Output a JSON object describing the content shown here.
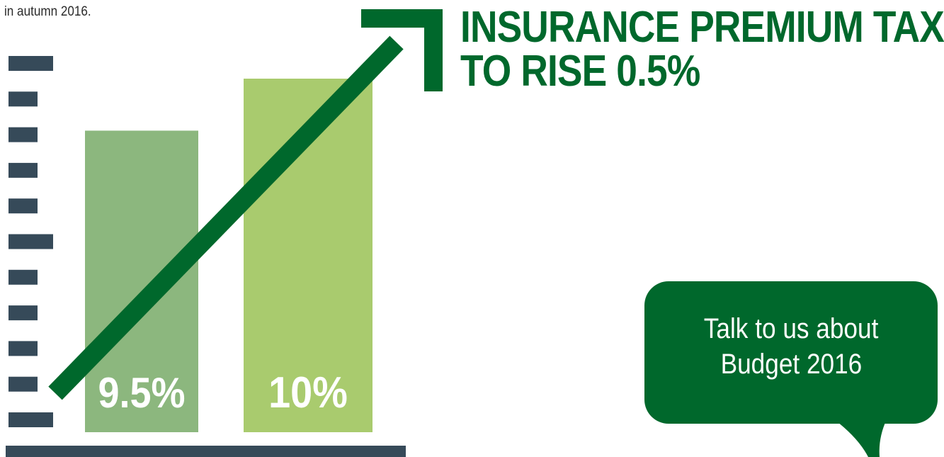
{
  "intro_text": "in autumn 2016.",
  "headline": {
    "line1": "INSURANCE PREMIUM TAX",
    "line2": "TO RISE 0.5%"
  },
  "cta": {
    "line1": "Talk to us about",
    "line2": "Budget 2016"
  },
  "colors": {
    "axis": "#364a59",
    "bar_old": "#8cb77e",
    "bar_new": "#a9cb6e",
    "arrow": "#00682c",
    "headline": "#00682c",
    "bubble": "#00682c",
    "bar_label": "#ffffff"
  },
  "chart_data": {
    "type": "bar",
    "categories": [
      "",
      ""
    ],
    "values": [
      9.5,
      10
    ],
    "data_labels": [
      "9.5%",
      "10%"
    ],
    "title": "",
    "xlabel": "",
    "ylabel": "",
    "ylim": [
      6.6,
      10.15
    ],
    "grid": false,
    "annotation": "upward trend arrow"
  }
}
